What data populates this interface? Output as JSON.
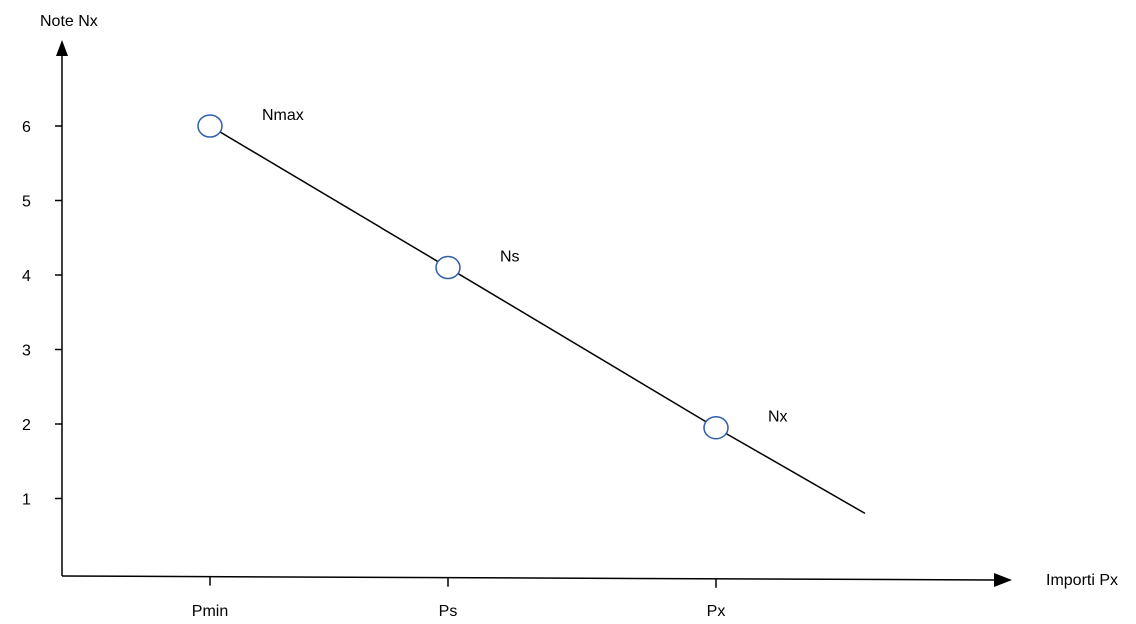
{
  "chart_data": {
    "type": "line",
    "ylabel": "Note Nx",
    "xlabel": "Importi Px",
    "y_ticks": [
      "1",
      "2",
      "3",
      "4",
      "5",
      "6"
    ],
    "categories": [
      "Pmin",
      "Ps",
      "Px"
    ],
    "points": [
      {
        "x": "Pmin",
        "y": 6,
        "label": "Nmax"
      },
      {
        "x": "Ps",
        "y": 4.1,
        "label": "Ns"
      },
      {
        "x": "Px",
        "y": 1.95,
        "label": "Nx"
      }
    ],
    "line_end": {
      "x_beyond_last": true,
      "y": 0.8
    },
    "colors": {
      "axis": "#000000",
      "line": "#000000",
      "marker_stroke": "#2e5fa8",
      "marker_fill": "#ffffff"
    }
  }
}
